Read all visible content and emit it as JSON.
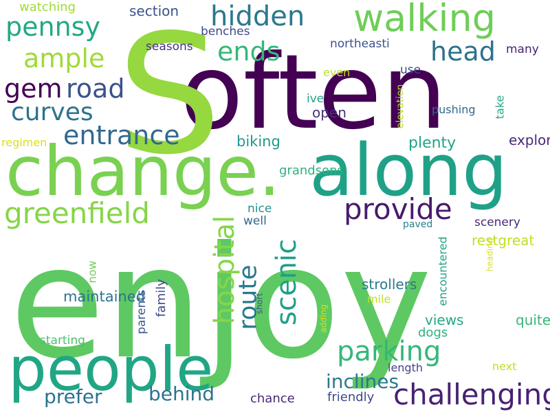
{
  "words": [
    {
      "text": "enjoy",
      "color": "#5ec962"
    },
    {
      "text": "often",
      "color": "#440154"
    },
    {
      "text": "S",
      "color": "#95d840"
    },
    {
      "text": "change.",
      "color": "#7ad151"
    },
    {
      "text": "along",
      "color": "#1fa187"
    },
    {
      "text": "people",
      "color": "#21a685"
    },
    {
      "text": "walking",
      "color": "#6ece58"
    },
    {
      "text": "hidden",
      "color": "#2a788e"
    },
    {
      "text": "pennsy",
      "color": "#22a884"
    },
    {
      "text": "ample",
      "color": "#a0da39"
    },
    {
      "text": "gem",
      "color": "#440154"
    },
    {
      "text": "road",
      "color": "#3b528b"
    },
    {
      "text": "curves",
      "color": "#2c728e"
    },
    {
      "text": "entrance",
      "color": "#31688e"
    },
    {
      "text": "greenfield",
      "color": "#86d549"
    },
    {
      "text": "ends",
      "color": "#35b779"
    },
    {
      "text": "head",
      "color": "#2c728e"
    },
    {
      "text": "provide",
      "color": "#481a6c"
    },
    {
      "text": "parking",
      "color": "#86d549"
    },
    {
      "text": "challenging",
      "color": "#1f9e89"
    },
    {
      "text": "behind",
      "color": "#2a788e"
    },
    {
      "text": "prefer",
      "color": "#35b779"
    },
    {
      "text": "inclines",
      "color": "#482173"
    },
    {
      "text": "hospital",
      "color": "#2c728e"
    },
    {
      "text": "scenic",
      "color": "#2c728e"
    },
    {
      "text": "route",
      "color": "#2a788e"
    },
    {
      "text": "section",
      "color": "#3b528b"
    },
    {
      "text": "watching",
      "color": "#a0da39"
    },
    {
      "text": "benches",
      "color": "#3e4989"
    },
    {
      "text": "seasons",
      "color": "#46337e"
    },
    {
      "text": "northeasti",
      "color": "#3b528b"
    },
    {
      "text": "use",
      "color": "#3e4989"
    },
    {
      "text": "many",
      "color": "#482173"
    },
    {
      "text": "even",
      "color": "#bddf26"
    },
    {
      "text": "ive",
      "color": "#20a486"
    },
    {
      "text": "open",
      "color": "#46337e"
    },
    {
      "text": "pushing",
      "color": "#b5de2b"
    },
    {
      "text": "regimen",
      "color": "#31688e"
    },
    {
      "text": "biking",
      "color": "#22a884"
    },
    {
      "text": "plenty",
      "color": "#d8e219"
    },
    {
      "text": "exploregreat",
      "color": "#1f988b"
    },
    {
      "text": "grandsons",
      "color": "#20a486"
    },
    {
      "text": "nice",
      "color": "#482878"
    },
    {
      "text": "well",
      "color": "#2db27d"
    },
    {
      "text": "paved",
      "color": "#21918c"
    },
    {
      "text": "scenery",
      "color": "#31688e"
    },
    {
      "text": "restgreat",
      "color": "#26828e"
    },
    {
      "text": "strollers",
      "color": "#482878"
    },
    {
      "text": "mile",
      "color": "#c2df23"
    },
    {
      "text": "maintained",
      "color": "#6ece58"
    },
    {
      "text": "views",
      "color": "#d8e219"
    },
    {
      "text": "quite",
      "color": "#2a788e"
    },
    {
      "text": "dogs",
      "color": "#c2df23"
    },
    {
      "text": "starting",
      "color": "#1fa187"
    },
    {
      "text": "next",
      "color": "#2c728e"
    },
    {
      "text": "length",
      "color": "#3e4989"
    },
    {
      "text": "friendly",
      "color": "#38588c"
    },
    {
      "text": "chance",
      "color": "#d8e219"
    },
    {
      "text": "elevation",
      "color": "#3b528b"
    },
    {
      "text": "take",
      "color": "#22a884"
    },
    {
      "text": "now",
      "color": "#35b779"
    },
    {
      "text": "heading",
      "color": "#2db27d"
    },
    {
      "text": "encountered",
      "color": "#4ac16d"
    },
    {
      "text": "family",
      "color": "#bddf26"
    },
    {
      "text": "parents",
      "color": "#414487"
    },
    {
      "text": "adding",
      "color": "#3e4989"
    },
    {
      "text": "short",
      "color": "#482878"
    }
  ]
}
